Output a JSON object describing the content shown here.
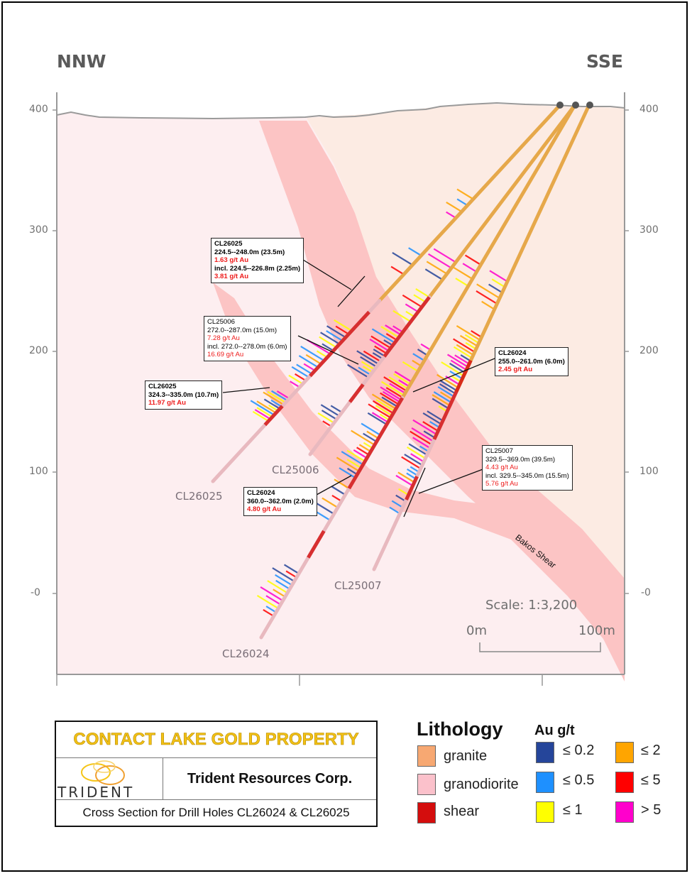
{
  "section": {
    "direction_left": "NNW",
    "direction_right": "SSE",
    "y_ticks_left": [
      "400",
      "300",
      "200",
      "100",
      "-0"
    ],
    "y_ticks_right": [
      "400",
      "300",
      "200",
      "100",
      "-0"
    ],
    "scale_text": "Scale: 1:3,200",
    "scale_start": "0m",
    "scale_end": "100m",
    "shear_label": "Bakos Shear"
  },
  "holes": [
    {
      "name": "CL26025"
    },
    {
      "name": "CL25006"
    },
    {
      "name": "CL26024"
    },
    {
      "name": "CL25007"
    }
  ],
  "callouts": [
    {
      "hole": "CL26025",
      "interval": "224.5--248.0m (23.5m)",
      "grade": "1.63 g/t Au",
      "incl": "incl. 224.5--226.8m (2.25m)",
      "incl_grade": "3.81 g/t Au"
    },
    {
      "hole": "CL25006",
      "interval": "272.0--287.0m (15.0m)",
      "grade": "7.28 g/t Au",
      "incl": "incl. 272.0--278.0m (6.0m)",
      "incl_grade": "16.69 g/t Au"
    },
    {
      "hole": "CL26025",
      "interval": "324.3--335.0m (10.7m)",
      "grade": "11.97 g/t Au"
    },
    {
      "hole": "CL26024",
      "interval": "255.0--261.0m (6.0m)",
      "grade": "2.45 g/t Au"
    },
    {
      "hole": "CL25007",
      "interval": "329.5--369.0m (39.5m)",
      "grade": "4.43 g/t Au",
      "incl": "incl. 329.5--345.0m (15.5m)",
      "incl_grade": "5.76 g/t Au"
    },
    {
      "hole": "CL26024",
      "interval": "360.0--362.0m (2.0m)",
      "grade": "4.80 g/t Au"
    }
  ],
  "title_block": {
    "property": "CONTACT LAKE GOLD PROPERTY",
    "logo_text": "TRIDENT",
    "company": "Trident Resources Corp.",
    "subtitle": "Cross Section for Drill Holes CL26024 & CL26025"
  },
  "legend": {
    "lithology_title": "Lithology",
    "lithology": [
      {
        "label": "granite",
        "color": "#f7a872"
      },
      {
        "label": "granodiorite",
        "color": "#fbc1cb"
      },
      {
        "label": "shear",
        "color": "#d40d0d"
      }
    ],
    "au_title": "Au g/t",
    "au": [
      {
        "label": "≤ 0.2",
        "color": "#25459a"
      },
      {
        "label": "≤ 0.5",
        "color": "#1e90ff"
      },
      {
        "label": "≤ 1",
        "color": "#ffff00"
      },
      {
        "label": "≤ 2",
        "color": "#ffa500"
      },
      {
        "label": "≤ 5",
        "color": "#ff0000"
      },
      {
        "label": "> 5",
        "color": "#ff00cc"
      }
    ]
  },
  "colors": {
    "granite_bg": "#fcebe3",
    "granodiorite_bg": "#fdeef0",
    "shear_zone": "#fcc4c4",
    "hole_granite": "#e6a84a",
    "hole_grano": "#e8b9bf"
  }
}
